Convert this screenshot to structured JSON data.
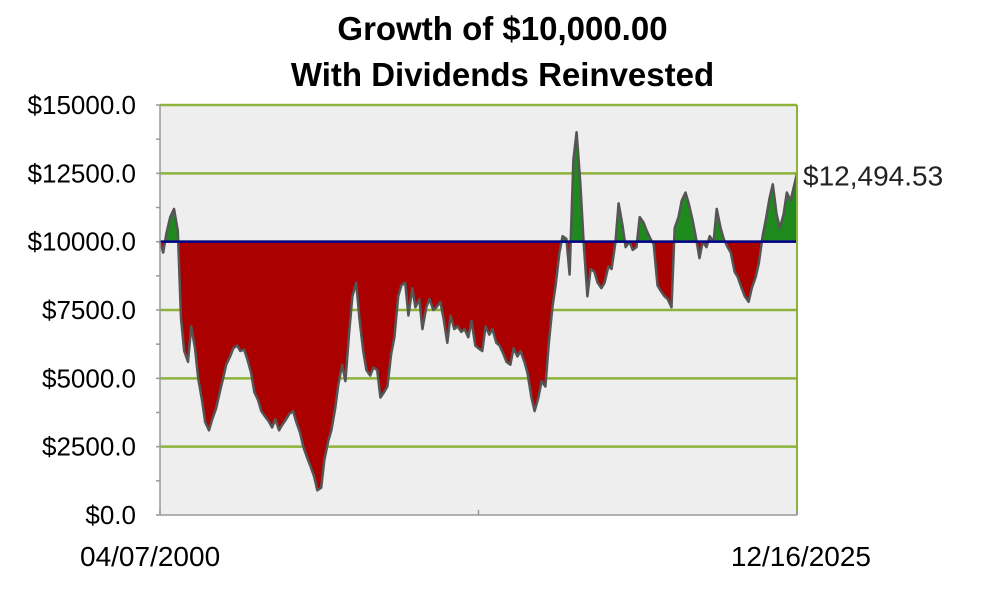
{
  "chart_data": {
    "type": "area",
    "title": "Growth of $10,000.00",
    "subtitle": "With Dividends Reinvested",
    "baseline": 10000,
    "ylim": [
      0,
      15000
    ],
    "y_ticks": [
      "$0.0",
      "$2500.0",
      "$5000.0",
      "$7500.0",
      "$10000.0",
      "$12500.0",
      "$15000.0"
    ],
    "y_tick_values": [
      0,
      2500,
      5000,
      7500,
      10000,
      12500,
      15000
    ],
    "x_start_label": "04/07/2000",
    "x_end_label": "12/16/2025",
    "end_value_label": "$12,494.53",
    "grid": true,
    "colors": {
      "above": "#1e8a1e",
      "below": "#aa0000",
      "baseline": "#00008b",
      "grid": "#8db33a",
      "plot_bg": "#eeeeee"
    },
    "x": [
      0,
      0.005,
      0.01,
      0.016,
      0.022,
      0.028,
      0.033,
      0.038,
      0.044,
      0.049,
      0.055,
      0.06,
      0.066,
      0.071,
      0.077,
      0.082,
      0.088,
      0.093,
      0.099,
      0.104,
      0.11,
      0.115,
      0.121,
      0.126,
      0.132,
      0.137,
      0.143,
      0.148,
      0.154,
      0.159,
      0.165,
      0.17,
      0.176,
      0.181,
      0.187,
      0.192,
      0.198,
      0.203,
      0.209,
      0.214,
      0.22,
      0.225,
      0.231,
      0.236,
      0.242,
      0.247,
      0.253,
      0.258,
      0.264,
      0.269,
      0.275,
      0.28,
      0.286,
      0.291,
      0.297,
      0.302,
      0.308,
      0.313,
      0.319,
      0.324,
      0.33,
      0.335,
      0.341,
      0.346,
      0.352,
      0.357,
      0.363,
      0.368,
      0.374,
      0.379,
      0.385,
      0.39,
      0.396,
      0.401,
      0.407,
      0.412,
      0.418,
      0.423,
      0.429,
      0.434,
      0.44,
      0.445,
      0.451,
      0.456,
      0.462,
      0.467,
      0.473,
      0.478,
      0.484,
      0.489,
      0.495,
      0.5,
      0.506,
      0.511,
      0.517,
      0.522,
      0.528,
      0.533,
      0.539,
      0.544,
      0.55,
      0.555,
      0.561,
      0.566,
      0.572,
      0.577,
      0.583,
      0.588,
      0.594,
      0.599,
      0.605,
      0.61,
      0.616,
      0.621,
      0.627,
      0.632,
      0.638,
      0.643,
      0.649,
      0.654,
      0.66,
      0.665,
      0.671,
      0.676,
      0.682,
      0.687,
      0.693,
      0.698,
      0.704,
      0.709,
      0.715,
      0.72,
      0.726,
      0.731,
      0.737,
      0.742,
      0.748,
      0.753,
      0.759,
      0.764,
      0.77,
      0.775,
      0.781,
      0.786,
      0.792,
      0.797,
      0.803,
      0.808,
      0.814,
      0.819,
      0.825,
      0.83,
      0.836,
      0.841,
      0.847,
      0.852,
      0.858,
      0.863,
      0.869,
      0.874,
      0.88,
      0.885,
      0.891,
      0.896,
      0.902,
      0.907,
      0.913,
      0.918,
      0.924,
      0.929,
      0.935,
      0.94,
      0.946,
      0.951,
      0.957,
      0.962,
      0.968,
      0.973,
      0.979,
      0.984,
      0.99,
      0.995,
      1.0
    ],
    "values": [
      10000,
      9600,
      10300,
      10900,
      11200,
      10400,
      7200,
      6000,
      5600,
      6900,
      6100,
      5000,
      4200,
      3400,
      3100,
      3500,
      3900,
      4400,
      5000,
      5500,
      5800,
      6100,
      6200,
      6000,
      6050,
      5700,
      5200,
      4500,
      4200,
      3800,
      3600,
      3450,
      3200,
      3500,
      3100,
      3300,
      3500,
      3700,
      3800,
      3400,
      3000,
      2500,
      2100,
      1800,
      1400,
      900,
      1000,
      2000,
      2700,
      3100,
      3900,
      4800,
      5500,
      4900,
      6700,
      8000,
      8500,
      7200,
      6000,
      5300,
      5100,
      5400,
      5300,
      4300,
      4500,
      4700,
      5900,
      6500,
      8000,
      8400,
      8500,
      7300,
      8300,
      7600,
      7900,
      6800,
      7600,
      7900,
      7500,
      7600,
      7800,
      7200,
      6300,
      7300,
      6800,
      6900,
      6700,
      6800,
      6500,
      7100,
      6200,
      6100,
      6000,
      6900,
      6600,
      6800,
      6300,
      6200,
      5900,
      5600,
      5500,
      6100,
      5800,
      6000,
      5600,
      5200,
      4300,
      3800,
      4300,
      4900,
      4700,
      6200,
      7600,
      8400,
      9600,
      10200,
      10100,
      8800,
      13000,
      14000,
      12100,
      10000,
      8000,
      9000,
      8900,
      8500,
      8300,
      8500,
      9100,
      9000,
      10000,
      11400,
      10600,
      9800,
      10000,
      9700,
      9800,
      10900,
      10700,
      10400,
      10100,
      9900,
      8400,
      8200,
      8000,
      7900,
      7600,
      10500,
      10900,
      11500,
      11800,
      11400,
      10800,
      10200,
      9400,
      10000,
      9800,
      10200,
      10000,
      11200,
      10500,
      10100,
      9800,
      9600,
      8900,
      8700,
      8300,
      8000,
      7800,
      8300,
      8700,
      9200,
      10200,
      10800,
      11600,
      12100,
      11000,
      10500,
      11000,
      11800,
      11500,
      12000,
      12494.53
    ]
  }
}
